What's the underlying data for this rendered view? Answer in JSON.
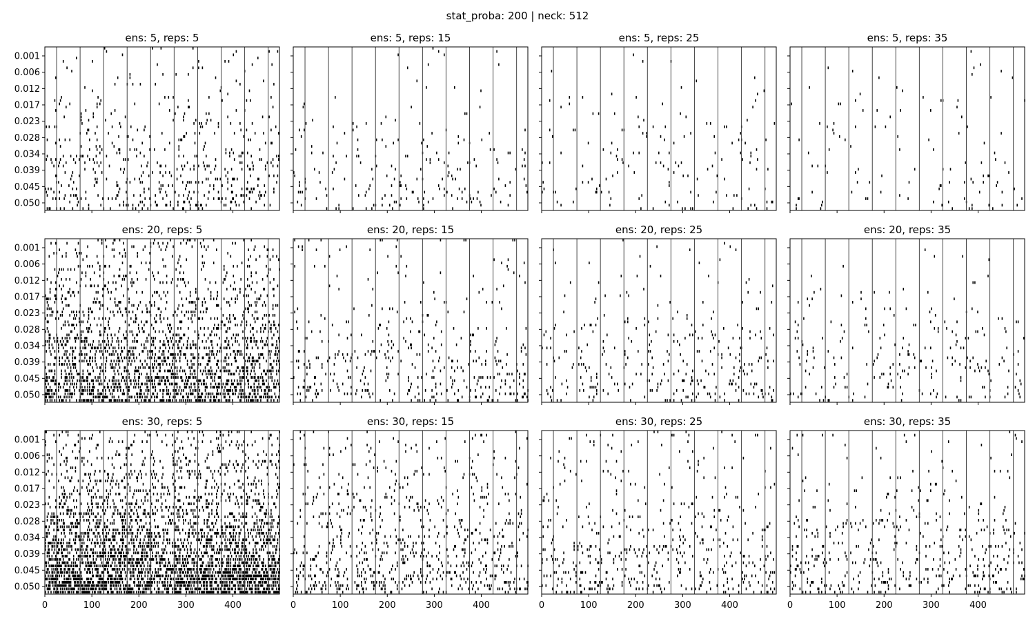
{
  "figure": {
    "suptitle": "stat_proba: 200 | neck: 512"
  },
  "chart_data": {
    "type": "heatmap",
    "colormap": "binary (white = 0, black = 1)",
    "grid": false,
    "sharex": true,
    "sharey": true,
    "xlim": [
      0,
      499
    ],
    "ylim": [
      0.05,
      0.001
    ],
    "yaxis_inverted": true,
    "x_ticks": [
      0,
      100,
      200,
      300,
      400
    ],
    "y_ticks": [
      "0.001",
      "0.006",
      "0.012",
      "0.017",
      "0.023",
      "0.028",
      "0.034",
      "0.039",
      "0.045",
      "0.050"
    ],
    "vertical_line_x": [
      25,
      75,
      125,
      175,
      225,
      275,
      325,
      375,
      425,
      475
    ],
    "panels": [
      {
        "title": "ens: 5, reps: 5",
        "ens": 5,
        "reps": 5,
        "density": 0.055
      },
      {
        "title": "ens: 5, reps: 15",
        "ens": 5,
        "reps": 15,
        "density": 0.02
      },
      {
        "title": "ens: 5, reps: 25",
        "ens": 5,
        "reps": 25,
        "density": 0.016
      },
      {
        "title": "ens: 5, reps: 35",
        "ens": 5,
        "reps": 35,
        "density": 0.013
      },
      {
        "title": "ens: 20, reps: 5",
        "ens": 20,
        "reps": 5,
        "density": 0.22
      },
      {
        "title": "ens: 20, reps: 15",
        "ens": 20,
        "reps": 15,
        "density": 0.04
      },
      {
        "title": "ens: 20, reps: 25",
        "ens": 20,
        "reps": 25,
        "density": 0.03
      },
      {
        "title": "ens: 20, reps: 35",
        "ens": 20,
        "reps": 35,
        "density": 0.025
      },
      {
        "title": "ens: 30, reps: 5",
        "ens": 30,
        "reps": 5,
        "density": 0.33
      },
      {
        "title": "ens: 30, reps: 15",
        "ens": 30,
        "reps": 15,
        "density": 0.08
      },
      {
        "title": "ens: 30, reps: 25",
        "ens": 30,
        "reps": 25,
        "density": 0.05
      },
      {
        "title": "ens: 30, reps: 35",
        "ens": 30,
        "reps": 35,
        "density": 0.045
      }
    ]
  }
}
